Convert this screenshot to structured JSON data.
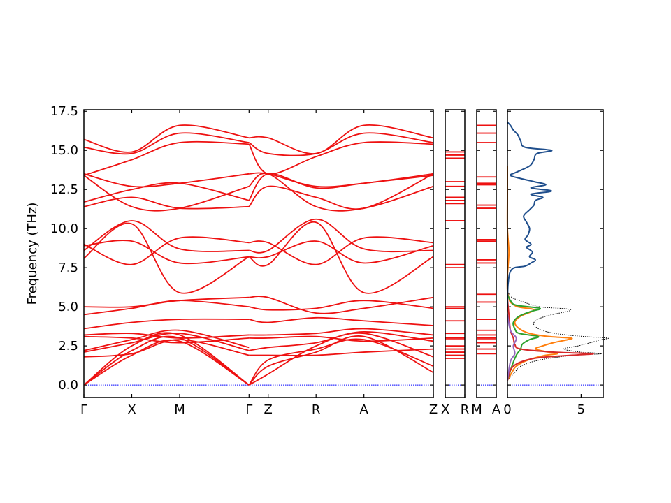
{
  "chart_data": {
    "type": "line",
    "ylabel": "Frequency (THz)",
    "ylim": [
      -0.8,
      17.6
    ],
    "yticks": [
      "0.0",
      "2.5",
      "5.0",
      "7.5",
      "10.0",
      "12.5",
      "15.0",
      "17.5"
    ],
    "yticks_values": [
      0,
      2.5,
      5,
      7.5,
      10,
      12.5,
      15,
      17.5
    ],
    "panels": [
      {
        "name": "Γ-X-M-Γ-Z-R-A-Z",
        "xticks": [
          {
            "label": "Γ",
            "x": 0.0
          },
          {
            "label": "X",
            "x": 1.0
          },
          {
            "label": "M",
            "x": 2.0
          },
          {
            "label": "Γ",
            "x": 3.45
          },
          {
            "label": "Z",
            "x": 3.85
          },
          {
            "label": "R",
            "x": 4.85
          },
          {
            "label": "A",
            "x": 5.85
          },
          {
            "label": "Z",
            "x": 7.3
          }
        ],
        "xlim": [
          0,
          7.3
        ],
        "bands": [
          {
            "x": [
              0,
              1,
              2,
              3.45
            ],
            "y": [
              0,
              1.9,
              2.8,
              0
            ]
          },
          {
            "x": [
              0,
              1,
              2,
              3.45
            ],
            "y": [
              0,
              2.2,
              3.0,
              0
            ]
          },
          {
            "x": [
              0,
              1,
              2,
              3.45
            ],
            "y": [
              0,
              2.5,
              3.2,
              0
            ]
          },
          {
            "x": [
              0,
              1,
              2,
              3.45
            ],
            "y": [
              1.8,
              2.0,
              2.9,
              1.9
            ]
          },
          {
            "x": [
              0,
              1,
              2,
              3.45
            ],
            "y": [
              2.1,
              2.7,
              3.3,
              2.2
            ]
          },
          {
            "x": [
              0,
              1,
              2,
              3.45
            ],
            "y": [
              2.2,
              2.9,
              3.5,
              2.4
            ]
          },
          {
            "x": [
              0,
              1,
              2,
              3.45
            ],
            "y": [
              3.1,
              3.0,
              2.7,
              3.0
            ]
          },
          {
            "x": [
              0,
              1,
              2,
              3.45
            ],
            "y": [
              3.2,
              3.3,
              3.0,
              3.2
            ]
          },
          {
            "x": [
              0,
              1,
              2,
              3.45
            ],
            "y": [
              3.6,
              4.0,
              4.2,
              4.2
            ]
          },
          {
            "x": [
              0,
              1,
              2,
              3.45
            ],
            "y": [
              4.5,
              4.9,
              5.4,
              5.0
            ]
          },
          {
            "x": [
              0,
              1,
              2,
              3.45
            ],
            "y": [
              5.0,
              5.0,
              5.4,
              5.6
            ]
          },
          {
            "x": [
              0,
              1,
              2,
              3.45
            ],
            "y": [
              8.1,
              10.3,
              5.9,
              8.2
            ]
          },
          {
            "x": [
              0,
              1,
              2,
              3.45
            ],
            "y": [
              8.6,
              10.5,
              8.7,
              8.6
            ]
          },
          {
            "x": [
              0,
              1,
              2,
              3.45
            ],
            "y": [
              8.9,
              9.2,
              7.8,
              8.2
            ]
          },
          {
            "x": [
              0,
              1,
              2,
              3.45
            ],
            "y": [
              9.0,
              7.7,
              9.4,
              9.1
            ]
          },
          {
            "x": [
              0,
              1,
              2,
              3.45
            ],
            "y": [
              11.4,
              12.0,
              11.3,
              11.4
            ]
          },
          {
            "x": [
              0,
              1,
              2,
              3.45
            ],
            "y": [
              11.7,
              12.5,
              12.9,
              11.8
            ]
          },
          {
            "x": [
              0,
              1,
              2,
              3.45
            ],
            "y": [
              13.4,
              11.4,
              11.3,
              12.7
            ]
          },
          {
            "x": [
              0,
              1,
              2,
              3.45
            ],
            "y": [
              13.5,
              12.7,
              12.9,
              13.5
            ]
          },
          {
            "x": [
              0,
              1,
              2,
              3.45
            ],
            "y": [
              13.4,
              14.4,
              15.5,
              15.4
            ]
          },
          {
            "x": [
              0,
              1,
              2,
              3.45
            ],
            "y": [
              15.2,
              14.8,
              16.1,
              15.5
            ]
          },
          {
            "x": [
              0,
              1,
              2,
              3.45
            ],
            "y": [
              15.7,
              14.9,
              16.6,
              15.8
            ]
          },
          {
            "x": [
              3.45,
              3.85,
              4.85,
              5.85,
              7.3
            ],
            "y": [
              0,
              1.6,
              2.3,
              2.9,
              1.2
            ]
          },
          {
            "x": [
              3.45,
              3.85,
              4.85,
              5.85,
              7.3
            ],
            "y": [
              0,
              1.2,
              2.1,
              3.1,
              0.8
            ]
          },
          {
            "x": [
              3.45,
              3.85,
              4.85,
              5.85,
              7.3
            ],
            "y": [
              0,
              0.7,
              2.5,
              3.3,
              1.8
            ]
          },
          {
            "x": [
              3.45,
              3.85,
              4.85,
              5.85,
              7.3
            ],
            "y": [
              1.9,
              1.9,
              1.9,
              2.1,
              2.3
            ]
          },
          {
            "x": [
              3.45,
              3.85,
              4.85,
              5.85,
              7.3
            ],
            "y": [
              2.2,
              2.4,
              2.7,
              3.4,
              2.8
            ]
          },
          {
            "x": [
              3.45,
              3.85,
              4.85,
              5.85,
              7.3
            ],
            "y": [
              3.0,
              3.0,
              3.1,
              2.8,
              3.0
            ]
          },
          {
            "x": [
              3.45,
              3.85,
              4.85,
              5.85,
              7.3
            ],
            "y": [
              3.2,
              3.2,
              3.3,
              3.6,
              3.2
            ]
          },
          {
            "x": [
              3.45,
              3.85,
              4.85,
              5.85,
              7.3
            ],
            "y": [
              4.2,
              4.0,
              4.3,
              4.1,
              3.8
            ]
          },
          {
            "x": [
              3.45,
              3.85,
              4.85,
              5.85,
              7.3
            ],
            "y": [
              5.0,
              4.8,
              4.9,
              5.4,
              4.9
            ]
          },
          {
            "x": [
              3.45,
              3.85,
              4.85,
              5.85,
              7.3
            ],
            "y": [
              5.6,
              5.6,
              4.6,
              4.9,
              5.6
            ]
          },
          {
            "x": [
              3.45,
              3.85,
              4.85,
              5.85,
              7.3
            ],
            "y": [
              8.2,
              7.7,
              10.4,
              5.9,
              8.2
            ]
          },
          {
            "x": [
              3.45,
              3.85,
              4.85,
              5.85,
              7.3
            ],
            "y": [
              8.6,
              8.6,
              10.6,
              8.7,
              8.6
            ]
          },
          {
            "x": [
              3.45,
              3.85,
              4.85,
              5.85,
              7.3
            ],
            "y": [
              8.2,
              8.2,
              9.2,
              7.8,
              8.9
            ]
          },
          {
            "x": [
              3.45,
              3.85,
              4.85,
              5.85,
              7.3
            ],
            "y": [
              9.1,
              9.1,
              7.7,
              9.4,
              9.1
            ]
          },
          {
            "x": [
              3.45,
              3.85,
              4.85,
              5.85,
              7.3
            ],
            "y": [
              11.4,
              12.7,
              12.0,
              11.3,
              13.5
            ]
          },
          {
            "x": [
              3.45,
              3.85,
              4.85,
              5.85,
              7.3
            ],
            "y": [
              11.8,
              13.5,
              12.6,
              12.9,
              13.4
            ]
          },
          {
            "x": [
              3.45,
              3.85,
              4.85,
              5.85,
              7.3
            ],
            "y": [
              12.7,
              13.5,
              11.4,
              11.3,
              12.7
            ]
          },
          {
            "x": [
              3.45,
              3.85,
              4.85,
              5.85,
              7.3
            ],
            "y": [
              13.5,
              13.5,
              12.7,
              12.9,
              13.5
            ]
          },
          {
            "x": [
              3.45,
              3.85,
              4.85,
              5.85,
              7.3
            ],
            "y": [
              15.4,
              13.5,
              14.6,
              15.5,
              15.4
            ]
          },
          {
            "x": [
              3.45,
              3.85,
              4.85,
              5.85,
              7.3
            ],
            "y": [
              15.5,
              14.8,
              14.8,
              16.1,
              15.5
            ]
          },
          {
            "x": [
              3.45,
              3.85,
              4.85,
              5.85,
              7.3
            ],
            "y": [
              15.8,
              15.8,
              14.8,
              16.6,
              15.8
            ]
          }
        ]
      },
      {
        "name": "X-R",
        "xticks": [
          {
            "label": "X",
            "x": 0
          },
          {
            "label": "R",
            "x": 1
          }
        ],
        "levels": [
          1.7,
          1.9,
          2.1,
          2.3,
          2.5,
          2.9,
          3.0,
          3.3,
          4.1,
          4.9,
          5.0,
          7.5,
          7.7,
          10.5,
          10.5,
          11.6,
          11.8,
          12.0,
          12.7,
          13.0,
          14.5,
          14.7,
          14.9
        ]
      },
      {
        "name": "M-A",
        "xticks": [
          {
            "label": "M",
            "x": 0
          },
          {
            "label": "A",
            "x": 1
          }
        ],
        "levels": [
          2.0,
          2.3,
          2.7,
          2.9,
          3.0,
          3.2,
          3.5,
          4.2,
          5.3,
          5.8,
          7.8,
          8.0,
          9.2,
          9.3,
          11.3,
          11.5,
          12.8,
          12.9,
          13.3,
          15.5,
          16.1,
          16.6
        ]
      }
    ],
    "dos": {
      "xticks": [
        "0",
        "5"
      ],
      "xticks_values": [
        0,
        5
      ],
      "xlim": [
        0,
        6.5
      ],
      "series": [
        {
          "color": "#000000",
          "style": "dotted",
          "freq": [
            0.3,
            0.8,
            1.2,
            1.6,
            1.9,
            2.0,
            2.1,
            2.3,
            2.5,
            2.7,
            2.9,
            3.0,
            3.1,
            3.3,
            3.6,
            4.0,
            4.4,
            4.8,
            5.0,
            5.3,
            5.6,
            6.0
          ],
          "dos": [
            0.0,
            0.5,
            0.9,
            2.2,
            4.5,
            6.4,
            5.0,
            3.8,
            4.8,
            5.6,
            6.4,
            6.8,
            5.2,
            3.2,
            2.1,
            1.8,
            2.6,
            4.3,
            2.2,
            1.1,
            0.3,
            0.0
          ]
        },
        {
          "color": "#ff7f0e",
          "style": "solid",
          "freq": [
            0.3,
            0.8,
            1.2,
            1.6,
            1.9,
            2.0,
            2.1,
            2.3,
            2.5,
            2.7,
            2.9,
            3.0,
            3.1,
            3.3,
            3.6,
            4.0,
            4.4,
            4.8,
            5.0,
            5.3,
            5.6,
            6.0,
            7.0,
            8.5,
            10.0,
            12.0,
            14.0
          ],
          "dos": [
            0.0,
            0.3,
            0.6,
            1.4,
            2.6,
            3.4,
            2.8,
            1.9,
            2.4,
            3.1,
            4.1,
            4.3,
            2.8,
            1.5,
            0.8,
            0.5,
            0.9,
            1.8,
            0.7,
            0.2,
            0.1,
            0.0,
            0.0,
            0.1,
            0.0,
            0.0,
            0.0
          ]
        },
        {
          "color": "#2ca02c",
          "style": "solid",
          "freq": [
            0.3,
            1.2,
            1.9,
            2.3,
            2.6,
            2.9,
            3.1,
            3.3,
            3.6,
            4.0,
            4.4,
            4.7,
            4.9,
            5.1,
            5.4,
            5.8
          ],
          "dos": [
            0.0,
            0.3,
            0.6,
            0.9,
            1.0,
            1.5,
            2.1,
            0.8,
            0.5,
            0.4,
            0.8,
            1.6,
            2.2,
            0.6,
            0.2,
            0.0
          ]
        },
        {
          "color": "#d62728",
          "style": "solid",
          "freq": [
            0.3,
            1.2,
            1.7,
            1.9,
            2.0,
            2.1,
            2.3,
            2.6,
            3.0,
            3.5,
            4.5,
            5.5
          ],
          "dos": [
            0.0,
            0.4,
            1.8,
            4.4,
            5.8,
            3.2,
            0.9,
            0.5,
            0.4,
            0.2,
            0.1,
            0.0
          ]
        },
        {
          "color": "#9467bd",
          "style": "solid",
          "freq": [
            0.3,
            1.5,
            2.0,
            2.5,
            3.0,
            3.5,
            4.5
          ],
          "dos": [
            0.0,
            0.2,
            0.5,
            0.4,
            0.6,
            0.2,
            0.0
          ]
        },
        {
          "color": "#1f4e8c",
          "style": "solid",
          "freq": [
            5.0,
            6.5,
            7.4,
            7.6,
            7.8,
            8.0,
            8.2,
            8.5,
            8.8,
            9.0,
            9.3,
            9.6,
            10.0,
            10.4,
            10.8,
            11.2,
            11.5,
            11.8,
            12.0,
            12.2,
            12.4,
            12.6,
            12.8,
            13.0,
            13.2,
            13.4,
            13.6,
            14.0,
            14.4,
            14.8,
            15.0,
            15.2,
            15.6,
            16.0,
            16.3,
            16.6,
            16.8
          ],
          "dos": [
            0.0,
            0.05,
            0.3,
            1.2,
            1.6,
            1.9,
            1.5,
            1.7,
            1.3,
            1.6,
            1.2,
            1.4,
            1.5,
            1.3,
            1.1,
            1.5,
            1.8,
            1.9,
            2.4,
            1.6,
            3.0,
            1.6,
            2.6,
            1.8,
            0.9,
            0.2,
            0.6,
            1.5,
            1.8,
            2.0,
            3.0,
            1.2,
            0.9,
            0.7,
            0.4,
            0.2,
            0.0
          ]
        }
      ]
    }
  }
}
